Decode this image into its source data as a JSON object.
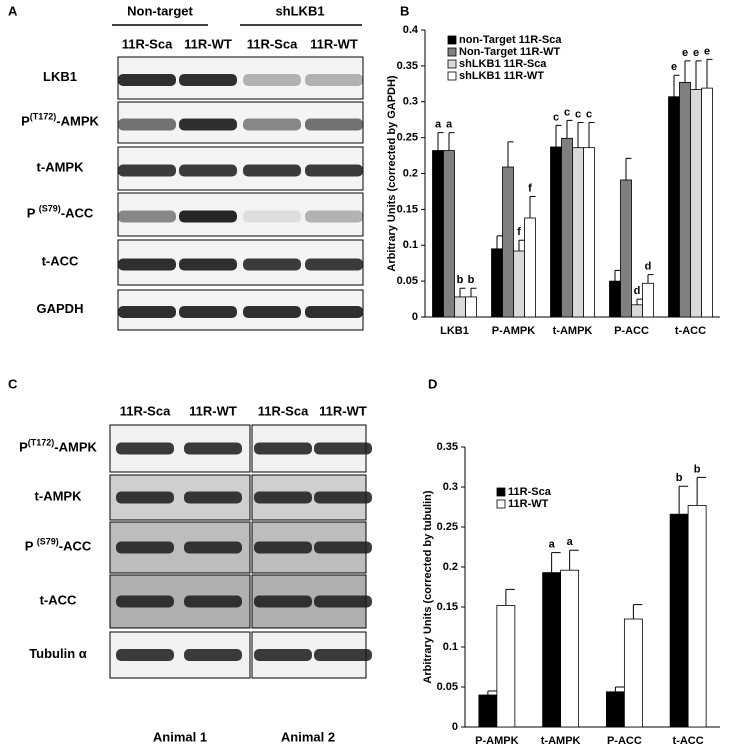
{
  "panel_a": {
    "label": "A",
    "groups": [
      "Non-target",
      "shLKB1"
    ],
    "lanes": [
      "11R-Sca",
      "11R-WT",
      "11R-Sca",
      "11R-WT"
    ],
    "rows": [
      {
        "text": "LKB1"
      },
      {
        "text": "P",
        "sup": "(T172)",
        "after": "-AMPK"
      },
      {
        "text": "t-AMPK"
      },
      {
        "text": "P ",
        "sup": "(S79)",
        "after": "-ACC"
      },
      {
        "text": "t-ACC"
      },
      {
        "text": "GAPDH"
      }
    ]
  },
  "panel_c": {
    "label": "C",
    "lanes": [
      "11R-Sca",
      "11R-WT",
      "11R-Sca",
      "11R-WT"
    ],
    "animals": [
      "Animal 1",
      "Animal 2"
    ],
    "rows": [
      {
        "text": "P",
        "sup": "(T172)",
        "after": "-AMPK"
      },
      {
        "text": "t-AMPK"
      },
      {
        "text": "P ",
        "sup": "(S79)",
        "after": "-ACC"
      },
      {
        "text": "t-ACC"
      },
      {
        "text": "Tubulin α"
      }
    ]
  },
  "chart_data": [
    {
      "type": "bar",
      "label": "B",
      "y_label": "Arbitrary Units (corrected by GAPDH)",
      "categories": [
        "LKB1",
        "P-AMPK",
        "t-AMPK",
        "P-ACC",
        "t-ACC"
      ],
      "series": [
        {
          "name": "non-Target 11R-Sca",
          "color": "#000000",
          "values": [
            0.232,
            0.095,
            0.237,
            0.05,
            0.307
          ],
          "errors": [
            0.025,
            0.018,
            0.03,
            0.015,
            0.03
          ],
          "letters": [
            "a",
            null,
            "c",
            null,
            "e"
          ]
        },
        {
          "name": "Non-Target 11R-WT",
          "color": "#808080",
          "values": [
            0.232,
            0.209,
            0.249,
            0.191,
            0.327
          ],
          "errors": [
            0.025,
            0.035,
            0.025,
            0.03,
            0.03
          ],
          "letters": [
            "a",
            null,
            "c",
            null,
            "e"
          ]
        },
        {
          "name": "shLKB1 11R-Sca",
          "color": "#d9d9d9",
          "values": [
            0.028,
            0.092,
            0.236,
            0.017,
            0.317
          ],
          "errors": [
            0.012,
            0.015,
            0.035,
            0.008,
            0.04
          ],
          "letters": [
            "b",
            "f",
            "c",
            "d",
            "e"
          ]
        },
        {
          "name": "shLKB1 11R-WT",
          "color": "#ffffff",
          "values": [
            0.028,
            0.138,
            0.236,
            0.047,
            0.319
          ],
          "errors": [
            0.012,
            0.03,
            0.035,
            0.012,
            0.04
          ],
          "letters": [
            "b",
            "f",
            "c",
            "d",
            "e"
          ]
        }
      ],
      "ylim": [
        0,
        0.4
      ],
      "yticks": [
        0,
        0.05,
        0.1,
        0.15,
        0.2,
        0.25,
        0.3,
        0.35,
        0.4
      ]
    },
    {
      "type": "bar",
      "label": "D",
      "y_label": "Arbitrary Units (corrected by tubulin)",
      "categories": [
        "P-AMPK",
        "t-AMPK",
        "P-ACC",
        "t-ACC"
      ],
      "series": [
        {
          "name": "11R-Sca",
          "color": "#000000",
          "values": [
            0.04,
            0.193,
            0.044,
            0.266
          ],
          "errors": [
            0.005,
            0.025,
            0.006,
            0.035
          ],
          "letters": [
            null,
            "a",
            null,
            "b"
          ]
        },
        {
          "name": "11R-WT",
          "color": "#ffffff",
          "values": [
            0.152,
            0.196,
            0.135,
            0.277
          ],
          "errors": [
            0.02,
            0.025,
            0.018,
            0.035
          ],
          "letters": [
            null,
            "a",
            null,
            "b"
          ]
        }
      ],
      "ylim": [
        0,
        0.35
      ],
      "yticks": [
        0,
        0.05,
        0.1,
        0.15,
        0.2,
        0.25,
        0.3,
        0.35
      ]
    }
  ]
}
